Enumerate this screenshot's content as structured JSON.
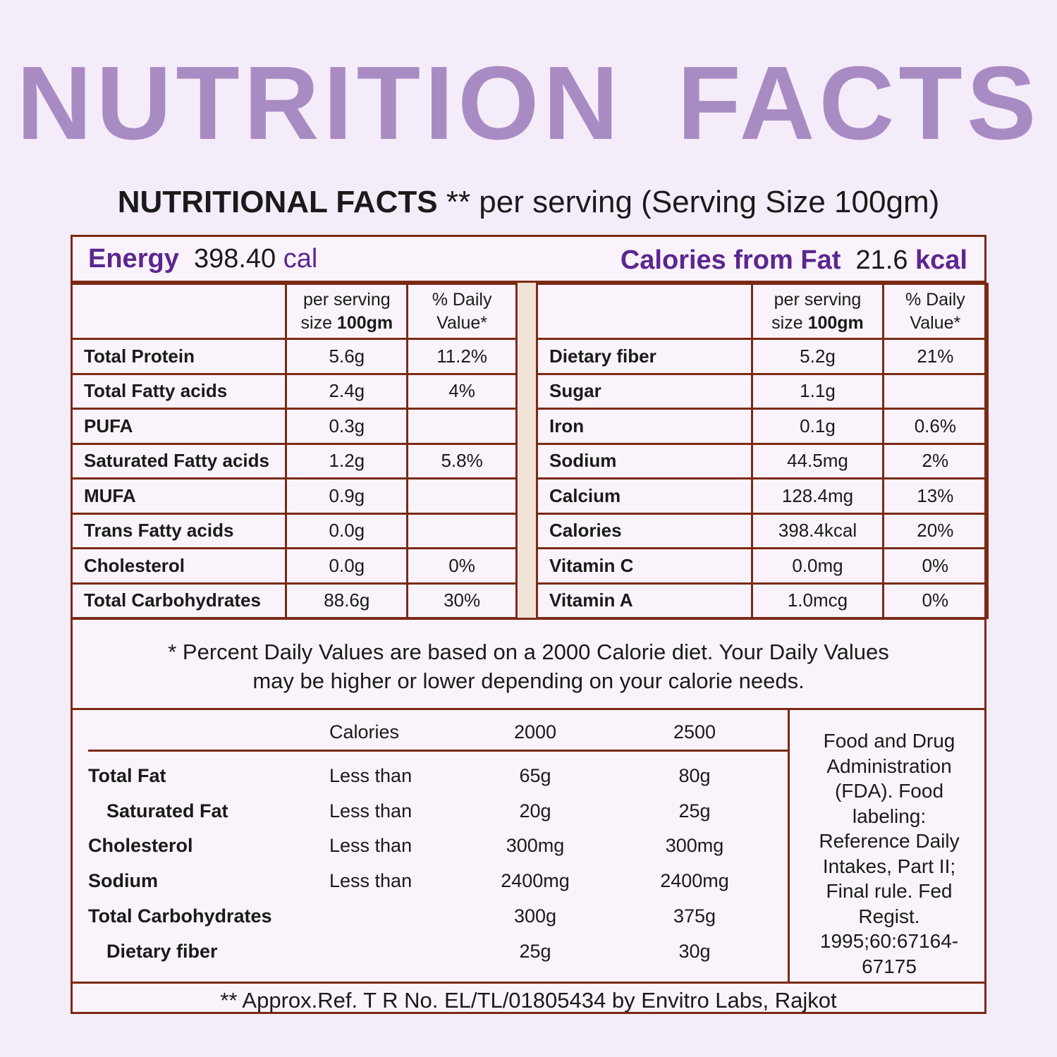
{
  "title": "NUTRITION FACTS",
  "subtitle": {
    "bold": "NUTRITIONAL FACTS",
    "rest": " ** per serving (Serving Size 100gm)"
  },
  "energy": {
    "label": "Energy",
    "value": "398.40",
    "unit": "cal"
  },
  "calories_from_fat": {
    "label": "Calories from Fat",
    "value": "21.6",
    "unit": "kcal"
  },
  "col_headers": {
    "serving_line1": "per serving",
    "serving_line2a": "size ",
    "serving_line2b": "100gm",
    "dv_line1": "% Daily",
    "dv_line2": "Value*"
  },
  "left_rows": [
    {
      "name": "Total Protein",
      "amount": "5.6g",
      "dv": "11.2%"
    },
    {
      "name": "Total Fatty acids",
      "amount": "2.4g",
      "dv": "4%"
    },
    {
      "name": "PUFA",
      "amount": "0.3g",
      "dv": ""
    },
    {
      "name": "Saturated Fatty acids",
      "amount": "1.2g",
      "dv": "5.8%"
    },
    {
      "name": "MUFA",
      "amount": "0.9g",
      "dv": ""
    },
    {
      "name": "Trans Fatty acids",
      "amount": "0.0g",
      "dv": ""
    },
    {
      "name": "Cholesterol",
      "amount": "0.0g",
      "dv": "0%"
    },
    {
      "name": "Total Carbohydrates",
      "amount": "88.6g",
      "dv": "30%"
    }
  ],
  "right_rows": [
    {
      "name": "Dietary fiber",
      "amount": "5.2g",
      "dv": "21%"
    },
    {
      "name": "Sugar",
      "amount": "1.1g",
      "dv": ""
    },
    {
      "name": "Iron",
      "amount": "0.1g",
      "dv": "0.6%"
    },
    {
      "name": "Sodium",
      "amount": "44.5mg",
      "dv": "2%"
    },
    {
      "name": "Calcium",
      "amount": "128.4mg",
      "dv": "13%"
    },
    {
      "name": "Calories",
      "amount": "398.4kcal",
      "dv": "20%"
    },
    {
      "name": "Vitamin C",
      "amount": "0.0mg",
      "dv": "0%"
    },
    {
      "name": "Vitamin A",
      "amount": "1.0mcg",
      "dv": "0%"
    }
  ],
  "footnote": {
    "line1": "* Percent Daily Values are based on a 2000 Calorie diet. Your Daily Values",
    "line2": "may be higher or lower depending on your calorie needs."
  },
  "dv_table": {
    "header": [
      "Calories",
      "2000",
      "2500"
    ],
    "rows": [
      {
        "name": "Total Fat",
        "cmp": "Less than",
        "a": "65g",
        "b": "80g",
        "indent": false
      },
      {
        "name": "Saturated Fat",
        "cmp": "Less than",
        "a": "20g",
        "b": "25g",
        "indent": true
      },
      {
        "name": "Cholesterol",
        "cmp": "Less than",
        "a": "300mg",
        "b": "300mg",
        "indent": false
      },
      {
        "name": "Sodium",
        "cmp": "Less than",
        "a": "2400mg",
        "b": "2400mg",
        "indent": false
      },
      {
        "name": "Total Carbohydrates",
        "cmp": "",
        "a": "300g",
        "b": "375g",
        "indent": false
      },
      {
        "name": "Dietary fiber",
        "cmp": "",
        "a": "25g",
        "b": "30g",
        "indent": true
      }
    ]
  },
  "fda_reference": [
    "Food and Drug",
    "Administration",
    "(FDA). Food",
    "labeling:",
    "Reference Daily",
    "Intakes, Part II;",
    "Final rule. Fed",
    "Regist.",
    "1995;60:67164-",
    "67175"
  ],
  "bottom_ref": "** Approx.Ref. T R No. EL/TL/01805434 by Envitro Labs, Rajkot"
}
